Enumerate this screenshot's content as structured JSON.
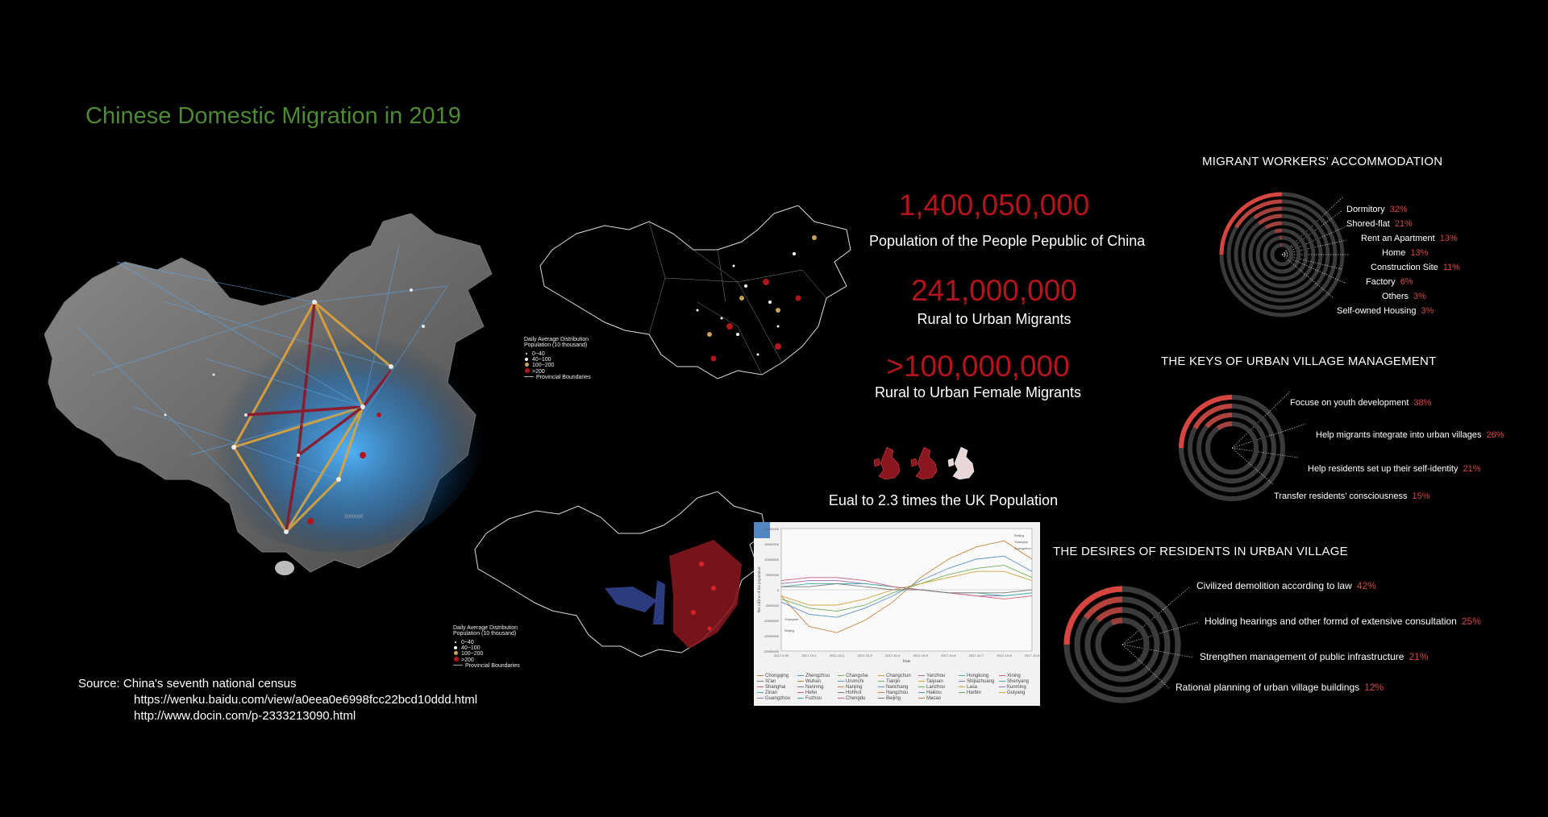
{
  "title": "Chinese Domestic Migration in 2019",
  "stats": [
    {
      "value": "1,400,050,000",
      "label": "Population of the People  Pepublic of China"
    },
    {
      "value": "241,000,000",
      "label": "Rural to Urban Migrants"
    },
    {
      "value": ">100,000,000",
      "label": "Rural to Urban Female Migrants"
    }
  ],
  "uk_comparison": {
    "label": "Eual to 2.3 times the UK Population",
    "multiple": 2.3
  },
  "accommodation": {
    "title": "MIGRANT WORKERS’  ACCOMMODATION",
    "items": [
      {
        "label": "Dormitory",
        "pct": "32%",
        "value": 32
      },
      {
        "label": "Shored-flat",
        "pct": "21%",
        "value": 21
      },
      {
        "label": "Rent an Apartment",
        "pct": "13%",
        "value": 13
      },
      {
        "label": "Home",
        "pct": "13%",
        "value": 13
      },
      {
        "label": "Construction Site",
        "pct": "11%",
        "value": 11
      },
      {
        "label": "Factory",
        "pct": "6%",
        "value": 6
      },
      {
        "label": "Others",
        "pct": "3%",
        "value": 3
      },
      {
        "label": "Self-owned Housing",
        "pct": "3%",
        "value": 3
      }
    ]
  },
  "management": {
    "title": "THE KEYS OF URBAN VILLAGE MANAGEMENT",
    "items": [
      {
        "label": "Focuse on youth development",
        "pct": "38%",
        "value": 38
      },
      {
        "label": "Help migrants integrate into urban villages",
        "pct": "26%",
        "value": 26
      },
      {
        "label": "Help residents set up their self-identity",
        "pct": "21%",
        "value": 21
      },
      {
        "label": "Transfer residents’  consciousness",
        "pct": "15%",
        "value": 15
      }
    ]
  },
  "desires": {
    "title": "THE DESIRES OF RESIDENTS IN URBAN VILLAGE",
    "items": [
      {
        "label": "Civilized demolition according to law",
        "pct": "42%",
        "value": 42
      },
      {
        "label": "Holding hearings and other formd of extensive consultation",
        "pct": "25%",
        "value": 25
      },
      {
        "label": "Strengthen management of public infrastructure",
        "pct": "21%",
        "value": 21
      },
      {
        "label": "Rational planning of urban village buildings",
        "pct": "12%",
        "value": 12
      }
    ]
  },
  "map_legend_top": {
    "title1": "Daily Average Distribution",
    "title2": "Population (10 thousand)",
    "rows": [
      "0~40",
      "40~100",
      "100~200",
      ">200",
      "Provincial Boundaries"
    ]
  },
  "map_legend_bottom": {
    "title1": "Daily Average Distribution",
    "title2": "Population (10 thousand)",
    "rows": [
      "0~40",
      "40~100",
      "100~200",
      ">200",
      "Provincial Boundaries"
    ]
  },
  "source": {
    "label": "Source:  China's seventh national census",
    "urls": [
      "https://wenku.baidu.com/view/a0eea0e6998fcc22bcd10ddd.html",
      "http://www.docin.com/p-2333213090.html"
    ]
  },
  "map_annotation": "2000000",
  "colors": {
    "accent_red": "#b3141c",
    "pct_red": "#d6453f",
    "title_green": "#4e8a34",
    "ring_dim": "#3a3a3a"
  },
  "chart_data": {
    "type": "line",
    "title": "",
    "xlabel": "Date",
    "ylabel": "Net inflow of the population",
    "ylim": [
      -20000000,
      20000000
    ],
    "y_ticks": [
      "20000000",
      "15000000",
      "10000000",
      "5000000",
      "0",
      "-5000000",
      "-10000000",
      "-15000000",
      "-20000000"
    ],
    "x": [
      "2017-9-30",
      "2017-10-1",
      "2017-10-2",
      "2017-10-3",
      "2017-10-4",
      "2017-10-5",
      "2017-10-6",
      "2017-10-7",
      "2017-10-8",
      "2017-10-9"
    ],
    "series_labels_right": [
      "Beijing",
      "Shanghai",
      "Guangzhou"
    ],
    "series_labels_left": [
      "Shanghai",
      "Beijing"
    ],
    "series": [
      {
        "name": "Beijing",
        "values": [
          -2,
          -12,
          -14,
          -10,
          -4,
          4,
          10,
          14,
          16,
          10
        ]
      },
      {
        "name": "Shanghai",
        "values": [
          -4,
          -8,
          -9,
          -6,
          -2,
          3,
          7,
          10,
          11,
          6
        ]
      },
      {
        "name": "Guangzhou",
        "values": [
          -3,
          -6,
          -7,
          -5,
          -1,
          2,
          5,
          7,
          8,
          4
        ]
      },
      {
        "name": "Shenzhen",
        "values": [
          -2,
          -5,
          -5,
          -3,
          0,
          2,
          4,
          6,
          6,
          3
        ]
      },
      {
        "name": "Chengdu",
        "values": [
          2,
          3,
          3,
          2,
          1,
          0,
          -1,
          -2,
          -2,
          -1
        ]
      },
      {
        "name": "Wuhan",
        "values": [
          1,
          2,
          2,
          2,
          1,
          0,
          -1,
          -1,
          -2,
          -1
        ]
      },
      {
        "name": "Chongqing",
        "values": [
          3,
          4,
          4,
          3,
          1,
          0,
          -1,
          -2,
          -3,
          -2
        ]
      },
      {
        "name": "Xi'an",
        "values": [
          1,
          1,
          2,
          1,
          0,
          0,
          -1,
          -1,
          -1,
          0
        ]
      }
    ],
    "legend_cities": [
      "Chongqing",
      "Zhengzhou",
      "Changsha",
      "Changchun",
      "Yanzhou",
      "Hongkong",
      "Xining",
      "Xi'an",
      "Wuhan",
      "Urumchi",
      "Tianjin",
      "Taiyuan",
      "Shijiazhuang",
      "Shenyang",
      "Shanghai",
      "Nanning",
      "Nanjing",
      "Nanchang",
      "Lanzhou",
      "Lasa",
      "Kunming",
      "Zinan",
      "Hefei",
      "Hohhot",
      "Hangzhou",
      "Haikou",
      "Harbin",
      "Guiyang",
      "Guangzhou",
      "Fuzhou",
      "Chengdu",
      "Beijing",
      "Macao"
    ]
  }
}
